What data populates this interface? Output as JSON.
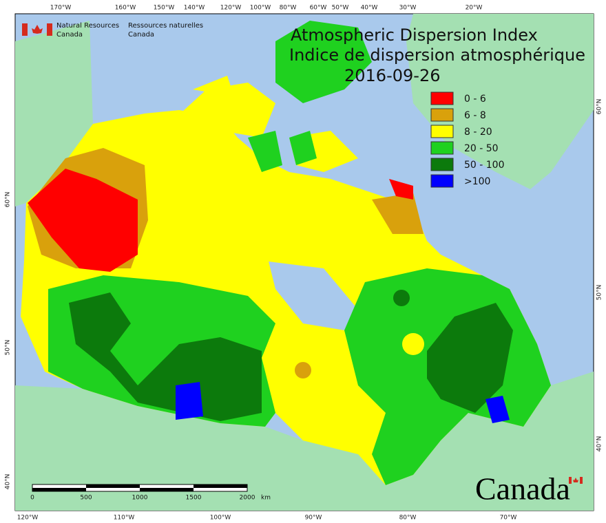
{
  "header": {
    "title_en": "Atmospheric Dispersion Index",
    "title_fr": "Indice de dispersion atmosphérique",
    "date": "2016-09-26"
  },
  "agency": {
    "en": [
      "Natural Resources",
      "Canada"
    ],
    "fr": [
      "Ressources naturelles",
      "Canada"
    ]
  },
  "legend": [
    {
      "label": "0 - 6",
      "color": "#ff0000"
    },
    {
      "label": "6 - 8",
      "color": "#d9a10c"
    },
    {
      "label": "8 - 20",
      "color": "#ffff00"
    },
    {
      "label": "20 - 50",
      "color": "#1fd11f"
    },
    {
      "label": "50 - 100",
      "color": "#0c7a0c"
    },
    {
      "label": ">100",
      "color": "#0000ff"
    }
  ],
  "graticule": {
    "top": [
      "170°W",
      "160°W",
      "150°W",
      "140°W",
      "120°W",
      "100°W",
      "80°W",
      "60°W",
      "50°W",
      "40°W",
      "30°W",
      "20°W"
    ],
    "bottom": [
      "120°W",
      "110°W",
      "100°W",
      "90°W",
      "80°W",
      "70°W"
    ],
    "left": [
      "60°N",
      "50°N",
      "40°N"
    ],
    "right": [
      "60°N",
      "50°N",
      "40°N"
    ]
  },
  "scale_bar": {
    "ticks": [
      "0",
      "500",
      "1000",
      "1500",
      "2000"
    ],
    "unit": "km"
  },
  "wordmark": "Canada"
}
